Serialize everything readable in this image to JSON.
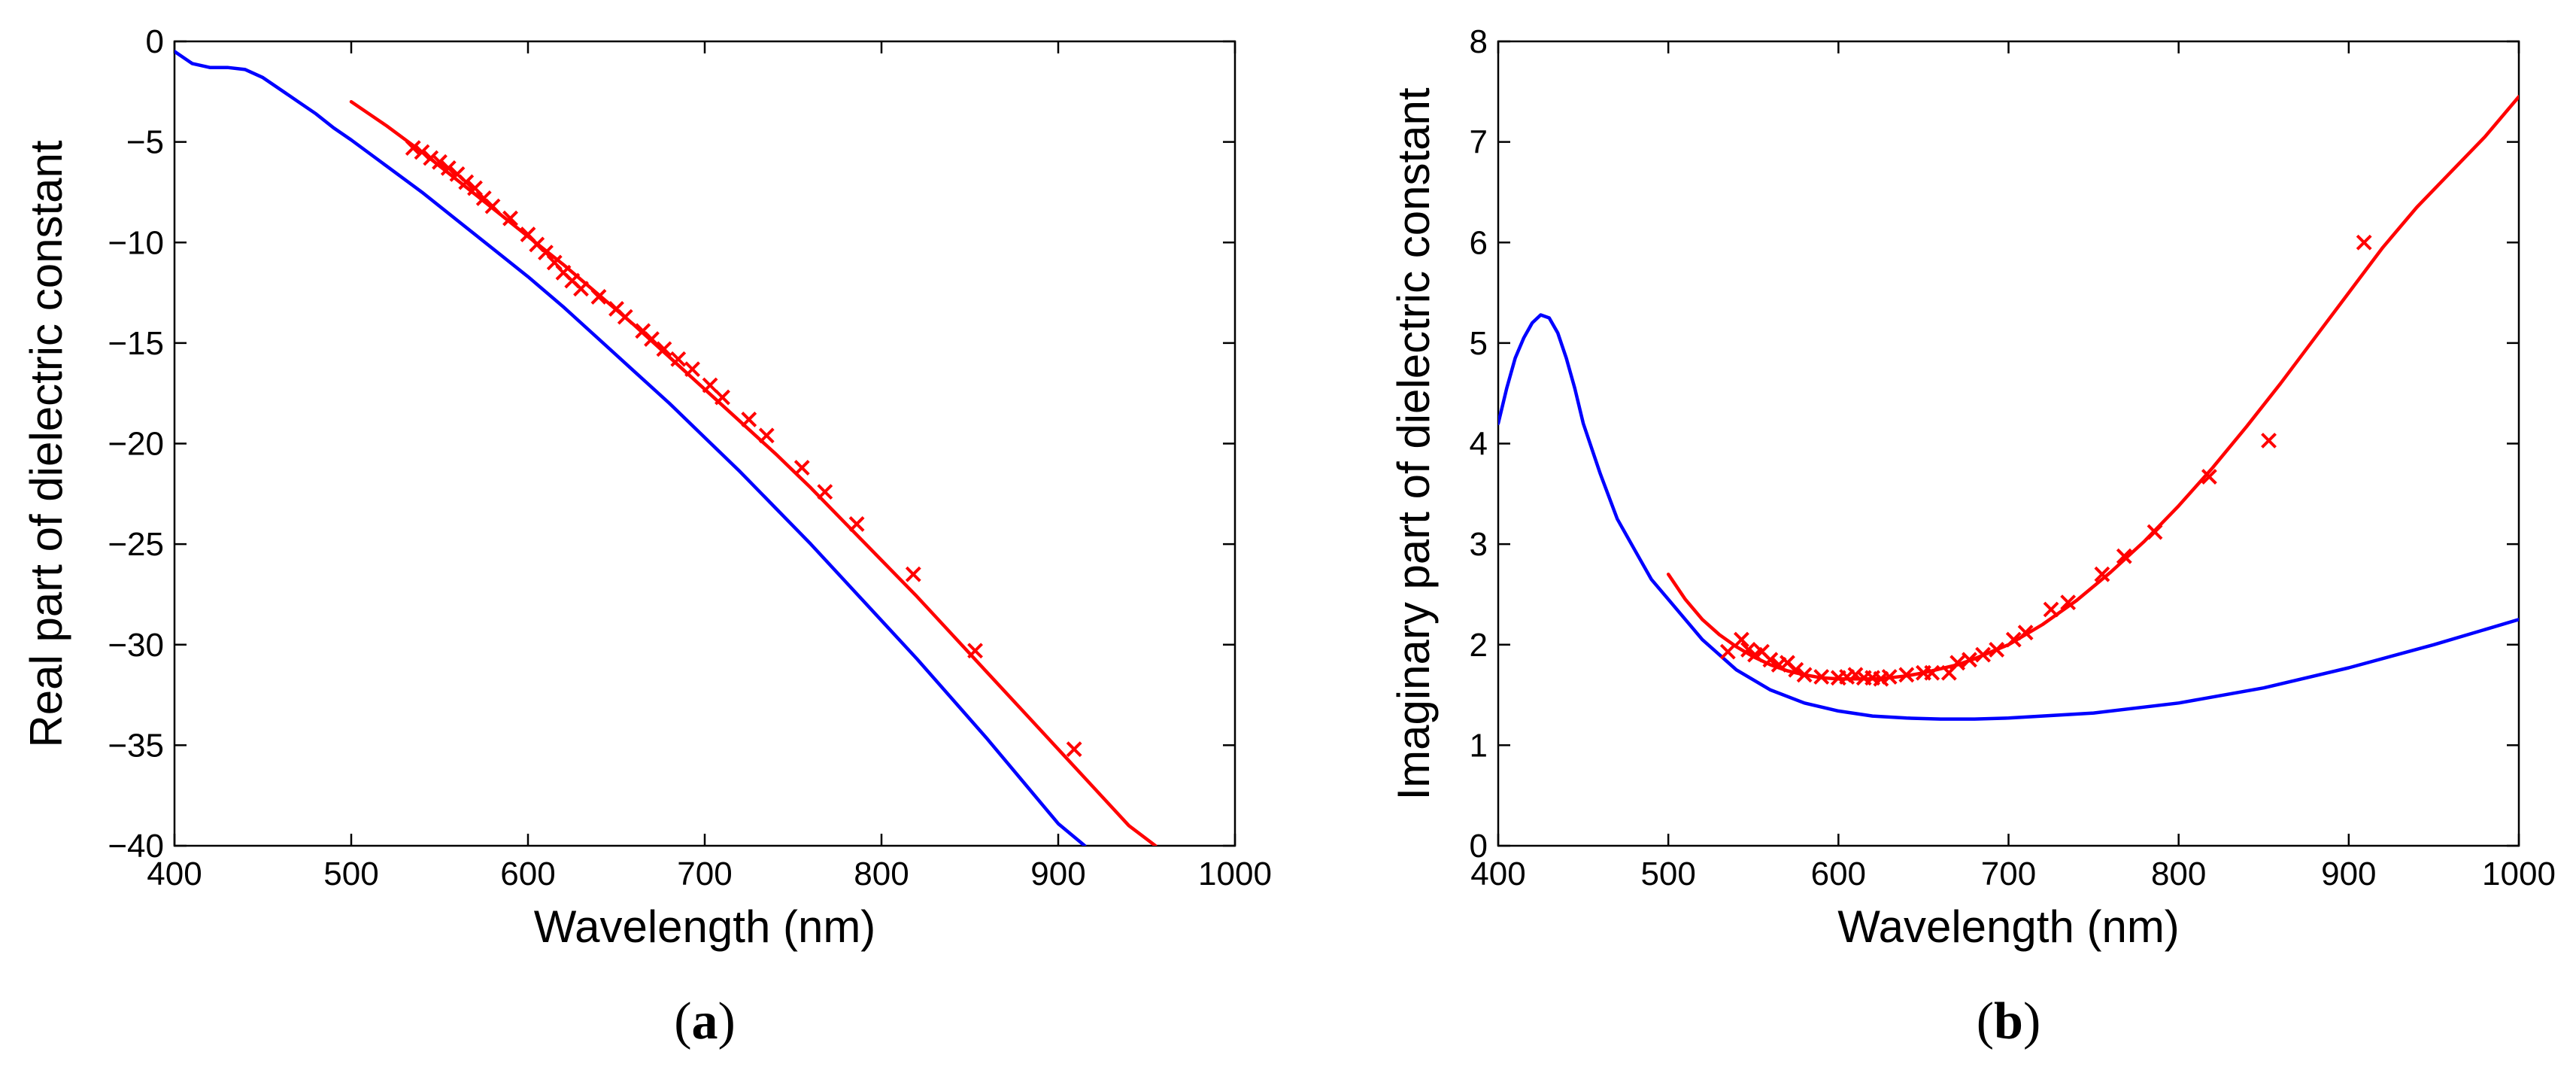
{
  "chart_data": [
    {
      "type": "line",
      "panel_label": "a",
      "xlabel": "Wavelength (nm)",
      "ylabel": "Real part of dielectric constant",
      "xlim": [
        400,
        1000
      ],
      "ylim": [
        -40,
        0
      ],
      "xticks": [
        400,
        500,
        600,
        700,
        800,
        900,
        1000
      ],
      "yticks": [
        0,
        -5,
        -10,
        -15,
        -20,
        -25,
        -30,
        -35,
        -40
      ],
      "series": [
        {
          "name": "blue curve",
          "color": "#0000ff",
          "style": "line",
          "x": [
            400,
            410,
            420,
            430,
            440,
            450,
            460,
            470,
            480,
            490,
            500,
            520,
            540,
            560,
            580,
            600,
            620,
            640,
            660,
            680,
            700,
            720,
            740,
            760,
            780,
            800,
            820,
            840,
            860,
            880,
            900,
            915
          ],
          "y": [
            -0.5,
            -1.1,
            -1.3,
            -1.3,
            -1.4,
            -1.8,
            -2.4,
            -3.0,
            -3.6,
            -4.3,
            -4.9,
            -6.2,
            -7.5,
            -8.9,
            -10.3,
            -11.7,
            -13.2,
            -14.8,
            -16.4,
            -18.0,
            -19.7,
            -21.4,
            -23.2,
            -25.0,
            -26.9,
            -28.8,
            -30.7,
            -32.7,
            -34.7,
            -36.8,
            -38.9,
            -40.0
          ]
        },
        {
          "name": "red fit",
          "color": "#ff0000",
          "style": "line",
          "x": [
            500,
            520,
            540,
            560,
            580,
            600,
            620,
            640,
            660,
            680,
            700,
            720,
            740,
            760,
            780,
            800,
            820,
            840,
            860,
            880,
            900,
            920,
            940,
            955
          ],
          "y": [
            -3.0,
            -4.2,
            -5.5,
            -6.9,
            -8.3,
            -9.7,
            -11.1,
            -12.6,
            -14.1,
            -15.7,
            -17.3,
            -18.9,
            -20.5,
            -22.2,
            -24.0,
            -25.8,
            -27.6,
            -29.5,
            -31.4,
            -33.3,
            -35.2,
            -37.1,
            -39.0,
            -40.0
          ]
        },
        {
          "name": "red data",
          "color": "#ff0000",
          "style": "markers",
          "marker": "x",
          "x": [
            535,
            540,
            545,
            550,
            555,
            560,
            565,
            570,
            575,
            580,
            590,
            600,
            605,
            610,
            615,
            620,
            625,
            630,
            640,
            650,
            655,
            665,
            670,
            677,
            685,
            693,
            703,
            710,
            725,
            735,
            755,
            768,
            786,
            818,
            853,
            909
          ],
          "y": [
            -5.3,
            -5.5,
            -5.8,
            -6.0,
            -6.3,
            -6.6,
            -7.0,
            -7.3,
            -7.8,
            -8.2,
            -8.8,
            -9.6,
            -10.1,
            -10.5,
            -11.0,
            -11.5,
            -11.9,
            -12.3,
            -12.7,
            -13.3,
            -13.7,
            -14.4,
            -14.8,
            -15.3,
            -15.8,
            -16.3,
            -17.1,
            -17.7,
            -18.8,
            -19.6,
            -21.2,
            -22.4,
            -24.0,
            -26.5,
            -30.3,
            -35.2
          ]
        }
      ]
    },
    {
      "type": "line",
      "panel_label": "b",
      "xlabel": "Wavelength (nm)",
      "ylabel": "Imaginary part of dielectric constant",
      "xlim": [
        400,
        1000
      ],
      "ylim": [
        0,
        8
      ],
      "xticks": [
        400,
        500,
        600,
        700,
        800,
        900,
        1000
      ],
      "yticks": [
        0,
        1,
        2,
        3,
        4,
        5,
        6,
        7,
        8
      ],
      "series": [
        {
          "name": "blue curve",
          "color": "#0000ff",
          "style": "line",
          "x": [
            400,
            405,
            410,
            415,
            420,
            425,
            430,
            435,
            440,
            445,
            450,
            460,
            470,
            480,
            490,
            500,
            510,
            520,
            530,
            540,
            560,
            580,
            600,
            620,
            640,
            660,
            680,
            700,
            750,
            800,
            850,
            900,
            950,
            1000
          ],
          "y": [
            4.2,
            4.55,
            4.85,
            5.05,
            5.2,
            5.28,
            5.25,
            5.1,
            4.85,
            4.55,
            4.2,
            3.7,
            3.25,
            2.95,
            2.65,
            2.45,
            2.25,
            2.05,
            1.9,
            1.75,
            1.55,
            1.42,
            1.34,
            1.29,
            1.27,
            1.26,
            1.26,
            1.27,
            1.32,
            1.42,
            1.57,
            1.77,
            2.0,
            2.25
          ]
        },
        {
          "name": "red fit",
          "color": "#ff0000",
          "style": "line",
          "x": [
            500,
            510,
            520,
            530,
            540,
            550,
            560,
            570,
            580,
            590,
            600,
            610,
            620,
            630,
            640,
            650,
            660,
            670,
            680,
            690,
            700,
            720,
            740,
            760,
            780,
            800,
            820,
            840,
            860,
            880,
            900,
            920,
            940,
            960,
            980,
            1000
          ],
          "y": [
            2.7,
            2.45,
            2.25,
            2.1,
            1.98,
            1.88,
            1.8,
            1.74,
            1.7,
            1.67,
            1.66,
            1.66,
            1.66,
            1.67,
            1.69,
            1.72,
            1.76,
            1.8,
            1.86,
            1.93,
            2.0,
            2.2,
            2.44,
            2.72,
            3.03,
            3.38,
            3.76,
            4.17,
            4.6,
            5.05,
            5.5,
            5.95,
            6.35,
            6.7,
            7.05,
            7.45
          ]
        },
        {
          "name": "red data",
          "color": "#ff0000",
          "style": "markers",
          "marker": "x",
          "x": [
            535,
            543,
            547,
            551,
            555,
            560,
            565,
            570,
            575,
            580,
            590,
            600,
            605,
            610,
            615,
            620,
            625,
            630,
            640,
            650,
            655,
            665,
            670,
            677,
            685,
            693,
            703,
            710,
            725,
            735,
            755,
            768,
            786,
            818,
            853,
            909
          ],
          "y": [
            1.93,
            2.05,
            1.95,
            1.9,
            1.93,
            1.85,
            1.8,
            1.82,
            1.75,
            1.7,
            1.68,
            1.67,
            1.68,
            1.7,
            1.67,
            1.67,
            1.66,
            1.68,
            1.7,
            1.72,
            1.72,
            1.72,
            1.82,
            1.85,
            1.9,
            1.95,
            2.05,
            2.12,
            2.35,
            2.42,
            2.7,
            2.88,
            3.12,
            3.67,
            4.03,
            6.0
          ]
        }
      ]
    }
  ]
}
